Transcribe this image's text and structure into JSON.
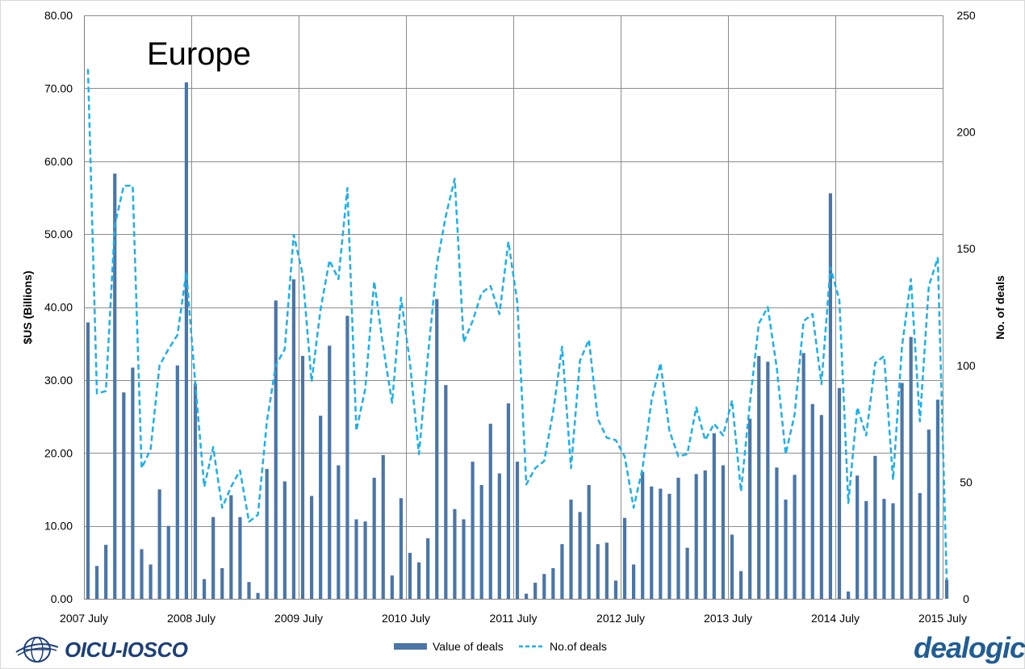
{
  "chart_data": {
    "type": "bar+line",
    "title": "Europe",
    "ylabel": "$US (Billions)",
    "y2label": "No. of deals",
    "ylim": [
      0,
      80
    ],
    "y2lim": [
      0,
      250
    ],
    "yticks": [
      "0.00",
      "10.00",
      "20.00",
      "30.00",
      "40.00",
      "50.00",
      "60.00",
      "70.00",
      "80.00"
    ],
    "y2ticks": [
      "0",
      "50",
      "100",
      "150",
      "200",
      "250"
    ],
    "xticks": [
      "2007 July",
      "2008 July",
      "2009 July",
      "2010 July",
      "2011 July",
      "2012 July",
      "2013 July",
      "2014 July",
      "2015 July"
    ],
    "legend": {
      "position": "bottom",
      "entries": [
        "Value of deals",
        "No.of deals"
      ]
    },
    "grid": true,
    "colors": {
      "bars": "#4a76a8",
      "line": "#1cb0e8",
      "grid": "#8c8c8c"
    },
    "series": [
      {
        "name": "Value of deals",
        "type": "bar",
        "axis": "left",
        "values": [
          37.9,
          4.5,
          7.4,
          58.3,
          28.3,
          31.7,
          6.8,
          4.7,
          15.0,
          10.0,
          32.0,
          70.8,
          29.5,
          2.7,
          11.2,
          4.2,
          14.2,
          11.2,
          2.3,
          0.8,
          17.8,
          40.9,
          16.1,
          43.8,
          33.3,
          14.1,
          25.1,
          34.7,
          18.3,
          38.8,
          10.9,
          10.6,
          16.6,
          19.7,
          3.2,
          13.8,
          6.3,
          5.0,
          8.3,
          41.1,
          29.3,
          12.3,
          10.9,
          18.8,
          15.6,
          24.0,
          17.2,
          26.8,
          18.8,
          0.7,
          2.2,
          3.4,
          4.2,
          7.5,
          13.6,
          11.9,
          15.6,
          7.5,
          7.7,
          2.5,
          11.1,
          4.7,
          17.4,
          15.4,
          15.1,
          14.4,
          16.6,
          7.0,
          17.1,
          17.6,
          22.7,
          18.3,
          8.8,
          3.8,
          24.7,
          33.3,
          32.5,
          18.0,
          13.6,
          17.0,
          33.7,
          26.7,
          25.2,
          55.6,
          28.9,
          1.0,
          16.9,
          13.4,
          19.6,
          13.7,
          13.1,
          29.6,
          35.9,
          14.5,
          23.2,
          27.3,
          2.6
        ]
      },
      {
        "name": "No.of deals",
        "type": "line",
        "axis": "right",
        "values": [
          227,
          88,
          89,
          160,
          177,
          177,
          56,
          64,
          100,
          107,
          113,
          140,
          92,
          48,
          65,
          39,
          48,
          55,
          33,
          36,
          76,
          100,
          107,
          156,
          139,
          93,
          124,
          145,
          137,
          176,
          72,
          90,
          136,
          108,
          84,
          129,
          101,
          62,
          104,
          143,
          164,
          180,
          110,
          119,
          131,
          134,
          122,
          153,
          127,
          49,
          56,
          59,
          80,
          108,
          56,
          102,
          111,
          77,
          69,
          68,
          61,
          39,
          56,
          85,
          101,
          72,
          61,
          62,
          82,
          68,
          75,
          70,
          85,
          46,
          84,
          118,
          125,
          99,
          62,
          79,
          119,
          122,
          92,
          142,
          128,
          41,
          82,
          70,
          101,
          104,
          51,
          108,
          137,
          76,
          134,
          146,
          8
        ]
      }
    ]
  },
  "logos": {
    "left_text": "OICU-IOSCO",
    "right_text": "dealogic"
  }
}
